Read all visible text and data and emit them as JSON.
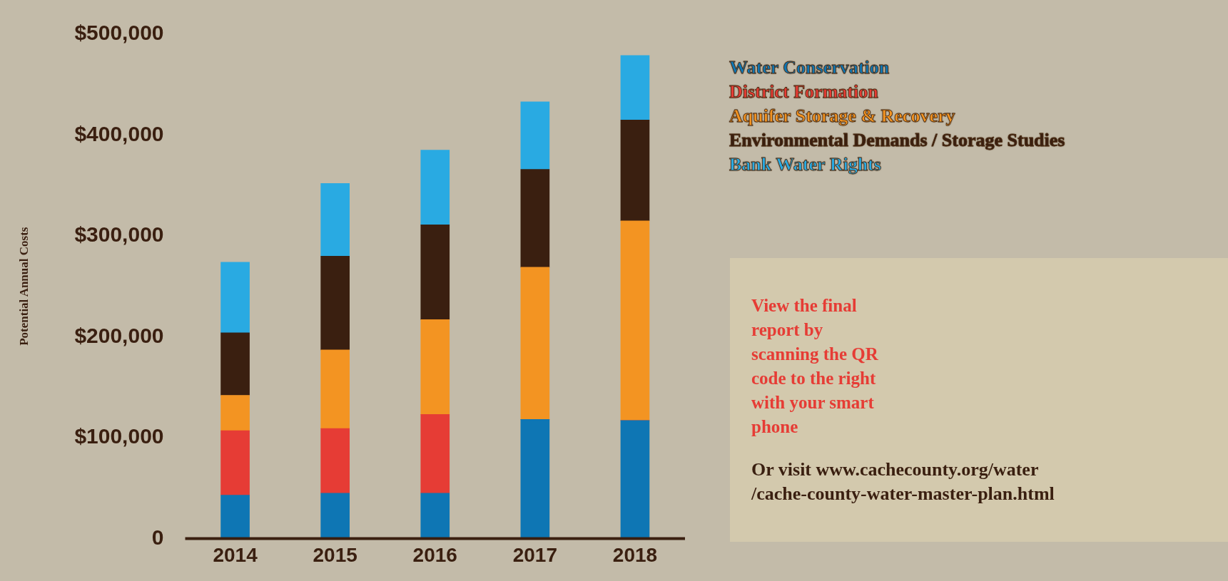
{
  "chart_data": {
    "type": "bar",
    "stacked": true,
    "ylabel": "Potential Annual Costs",
    "categories": [
      "2014",
      "2015",
      "2016",
      "2017",
      "2018"
    ],
    "series": [
      {
        "name": "Water Conservation",
        "color": "#0e76b4",
        "values": [
          43000,
          45000,
          45000,
          118000,
          117000
        ]
      },
      {
        "name": "District Formation",
        "color": "#e63c35",
        "values": [
          64000,
          64000,
          78000,
          0,
          0
        ]
      },
      {
        "name": "Aquifer Storage & Recovery",
        "color": "#f39422",
        "values": [
          35000,
          78000,
          94000,
          151000,
          198000
        ]
      },
      {
        "name": "Environmental Demands / Storage Studies",
        "color": "#3a1f10",
        "values": [
          62000,
          93000,
          94000,
          97000,
          100000
        ]
      },
      {
        "name": "Bank Water Rights",
        "color": "#29aae2",
        "values": [
          70000,
          72000,
          74000,
          67000,
          64000
        ]
      }
    ],
    "ylim": [
      0,
      500000
    ],
    "yticks": [
      0,
      {
        "value": 100000,
        "label": "$100,000"
      },
      {
        "value": 200000,
        "label": "$200,000"
      },
      {
        "value": 300000,
        "label": "$300,000"
      },
      {
        "value": 400000,
        "label": "$400,000"
      },
      {
        "value": 500000,
        "label": "$500,000"
      }
    ],
    "grid": false,
    "legend": "top right",
    "annotations": [
      "View the final report by scanning the QR code to the right with your smart phone",
      "Or visit www.cachecounty.org/water /cache-county-water-master-plan.html"
    ]
  }
}
